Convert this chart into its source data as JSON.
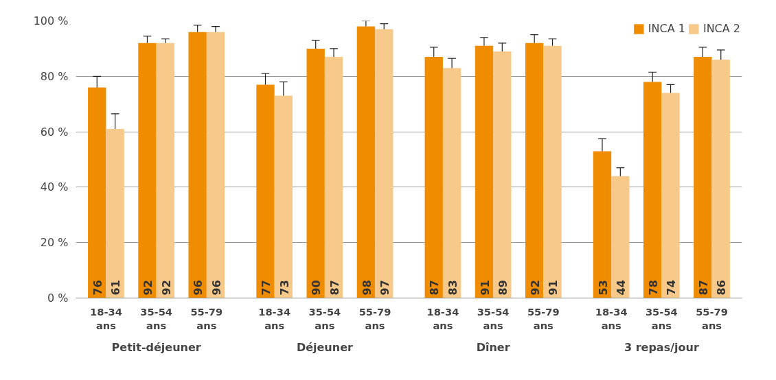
{
  "chart_data": {
    "type": "bar",
    "categories": [
      "18-34 ans",
      "35-54 ans",
      "55-79 ans",
      "18-34 ans",
      "35-54 ans",
      "55-79 ans",
      "18-34 ans",
      "35-54 ans",
      "55-79 ans",
      "18-34 ans",
      "35-54 ans",
      "55-79 ans"
    ],
    "annotations": [
      "Petit-déjeuner",
      "Déjeuner",
      "Dîner",
      "3 repas/jour"
    ],
    "series": [
      {
        "name": "INCA 1",
        "color": "#f08c00",
        "values": [
          76,
          92,
          96,
          77,
          90,
          98,
          87,
          91,
          92,
          53,
          78,
          87
        ],
        "errors": [
          [
            76,
            80
          ],
          [
            92,
            94.5
          ],
          [
            96,
            98.5
          ],
          [
            77,
            81
          ],
          [
            90,
            93
          ],
          [
            98,
            100
          ],
          [
            87,
            90.5
          ],
          [
            91,
            94
          ],
          [
            92,
            95
          ],
          [
            53,
            57.5
          ],
          [
            78,
            81.5
          ],
          [
            87,
            90.5
          ]
        ]
      },
      {
        "name": "INCA 2",
        "color": "#f7c98a",
        "values": [
          61,
          92,
          96,
          73,
          87,
          97,
          83,
          89,
          91,
          44,
          74,
          86
        ],
        "errors": [
          [
            61,
            66.5
          ],
          [
            92,
            93.5
          ],
          [
            96,
            98
          ],
          [
            73,
            78
          ],
          [
            87,
            90
          ],
          [
            97,
            99
          ],
          [
            83,
            86.5
          ],
          [
            89,
            92
          ],
          [
            91,
            93.5
          ],
          [
            44,
            47
          ],
          [
            74,
            77
          ],
          [
            86,
            89.5
          ]
        ]
      }
    ],
    "ylim": [
      0,
      100
    ],
    "yticks": [
      {
        "value": 0,
        "label": "0 %"
      },
      {
        "value": 20,
        "label": "20 %"
      },
      {
        "value": 40,
        "label": "40 %"
      },
      {
        "value": 60,
        "label": "60 %"
      },
      {
        "value": 80,
        "label": "80 %"
      },
      {
        "value": 100,
        "label": "100 %"
      }
    ],
    "grid": "y",
    "legend": "top right",
    "data_labels": true
  }
}
